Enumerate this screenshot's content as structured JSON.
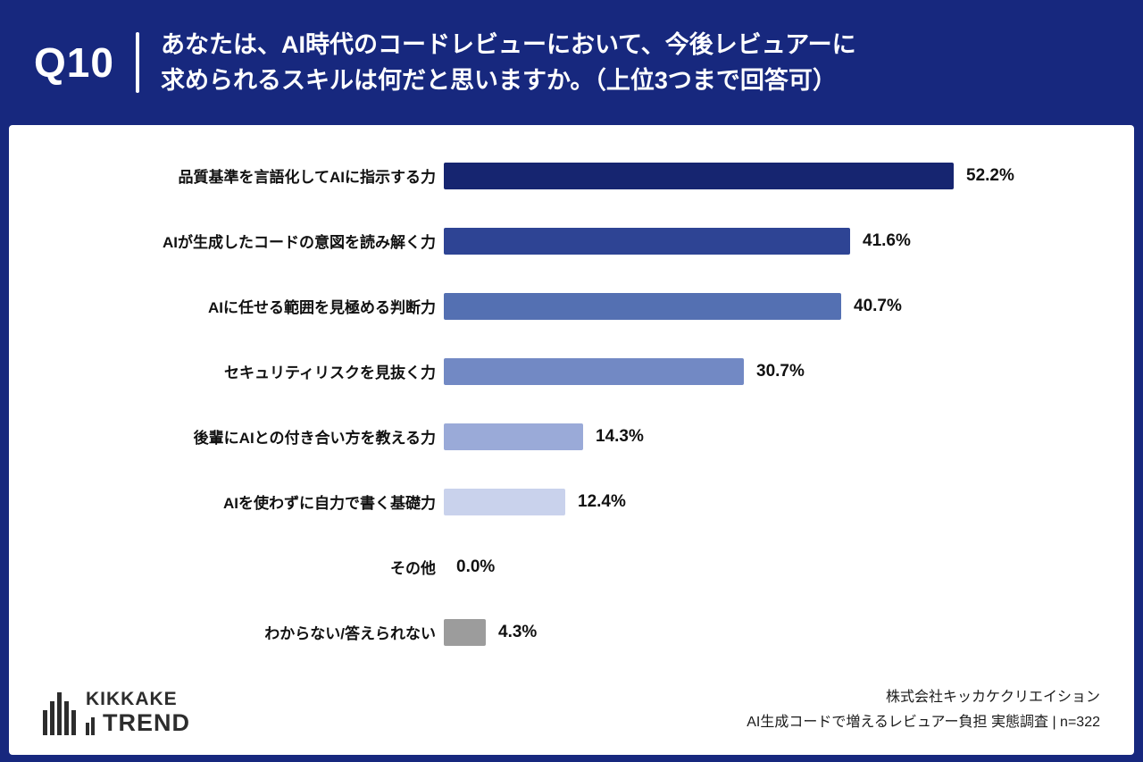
{
  "header": {
    "question_number": "Q10",
    "question_line1": "あなたは、AI時代のコードレビューにおいて、今後レビュアーに",
    "question_line2": "求められるスキルは何だと思いますか。（上位3つまで回答可）"
  },
  "chart_data": {
    "type": "bar",
    "orientation": "horizontal",
    "title": "",
    "xlabel": "",
    "ylabel": "",
    "xlim": [
      0,
      56
    ],
    "grid": false,
    "legend": "none",
    "categories": [
      "品質基準を言語化してAIに指示する力",
      "AIが生成したコードの意図を読み解く力",
      "AIに任せる範囲を見極める判断力",
      "セキュリティリスクを見抜く力",
      "後輩にAIとの付き合い方を教える力",
      "AIを使わずに自力で書く基礎力",
      "その他",
      "わからない/答えられない"
    ],
    "values": [
      52.2,
      41.6,
      40.7,
      30.7,
      14.3,
      12.4,
      0.0,
      4.3
    ],
    "value_labels": [
      "52.2%",
      "41.6%",
      "40.7%",
      "30.7%",
      "14.3%",
      "12.4%",
      "0.0%",
      "4.3%"
    ],
    "bar_colors": [
      "#162570",
      "#2e4494",
      "#5470b2",
      "#7289c4",
      "#9aaad8",
      "#c9d2ec",
      "#c9d2ec",
      "#9c9c9c"
    ]
  },
  "colors": {
    "background": "#17287e",
    "card": "#ffffff",
    "text": "#111111"
  },
  "footer": {
    "logo_line1": "KIKKAKE",
    "logo_line2": "TREND",
    "credit_line1": "株式会社キッカケクリエイション",
    "credit_line2": "AI生成コードで増えるレビュアー負担 実態調査 | n=322"
  }
}
